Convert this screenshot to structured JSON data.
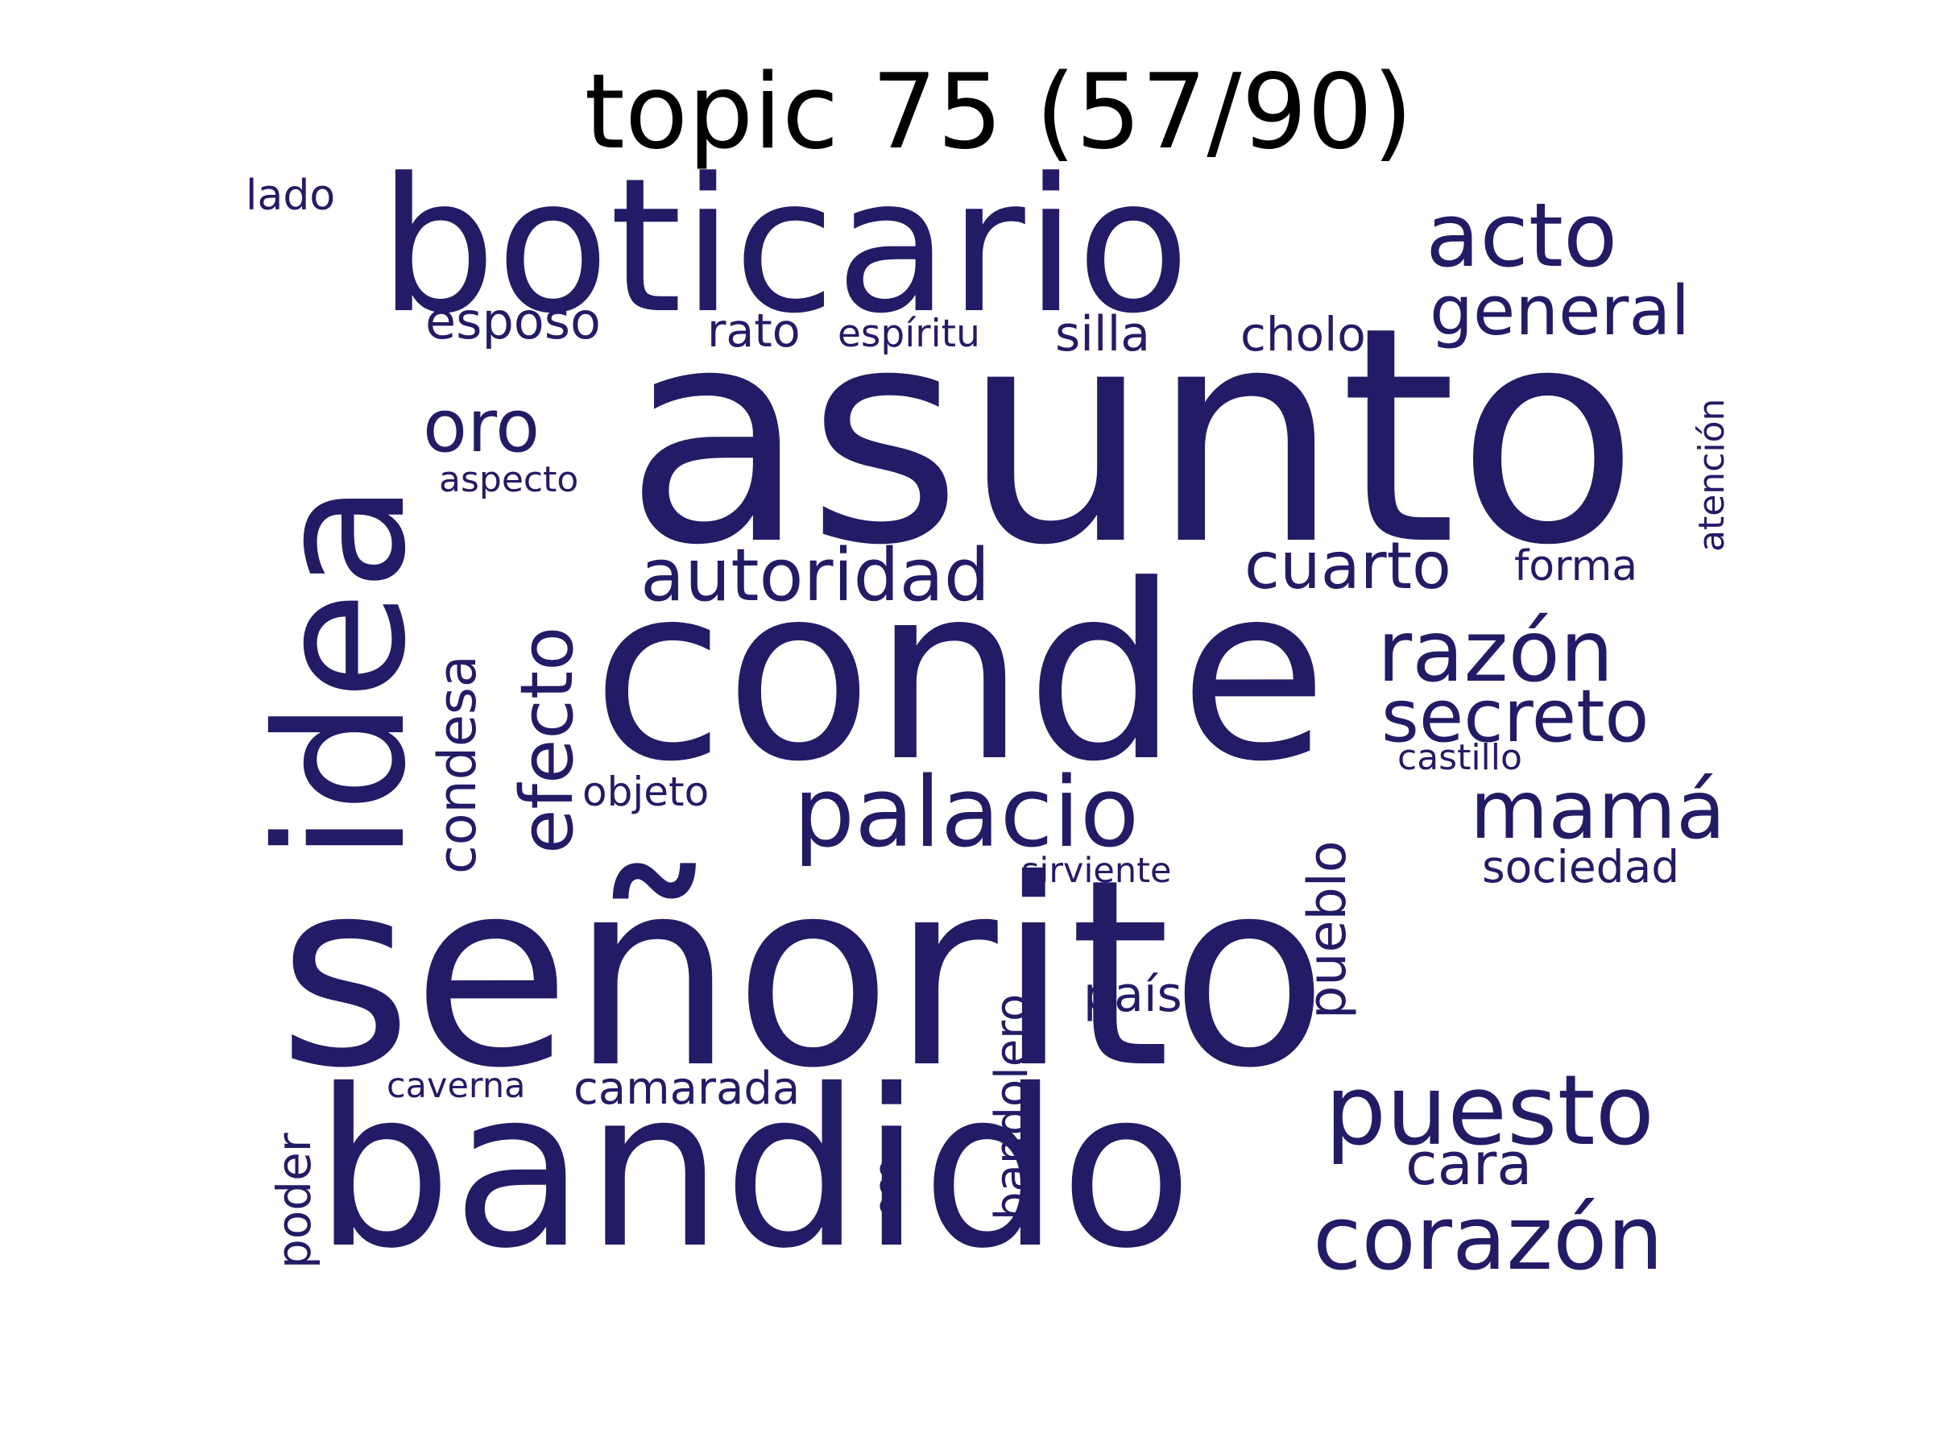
{
  "title": "topic 75 (57/90)",
  "word_color": "#221c66",
  "words": [
    {
      "id": "asunto",
      "text": "asunto",
      "vertical": false
    },
    {
      "id": "senorito",
      "text": "señorito",
      "vertical": false
    },
    {
      "id": "conde",
      "text": "conde",
      "vertical": false
    },
    {
      "id": "bandido",
      "text": "bandido",
      "vertical": false
    },
    {
      "id": "boticario",
      "text": "boticario",
      "vertical": false
    },
    {
      "id": "idea",
      "text": "idea",
      "vertical": true
    },
    {
      "id": "palacio",
      "text": "palacio",
      "vertical": false
    },
    {
      "id": "puesto",
      "text": "puesto",
      "vertical": false
    },
    {
      "id": "corazon",
      "text": "corazón",
      "vertical": false
    },
    {
      "id": "acto",
      "text": "acto",
      "vertical": false
    },
    {
      "id": "razon",
      "text": "razón",
      "vertical": false
    },
    {
      "id": "mama",
      "text": "mamá",
      "vertical": false
    },
    {
      "id": "secreto",
      "text": "secreto",
      "vertical": false
    },
    {
      "id": "autoridad",
      "text": "autoridad",
      "vertical": false
    },
    {
      "id": "efecto",
      "text": "efecto",
      "vertical": true
    },
    {
      "id": "general",
      "text": "general",
      "vertical": false
    },
    {
      "id": "cuarto",
      "text": "cuarto",
      "vertical": false
    },
    {
      "id": "oro",
      "text": "oro",
      "vertical": false
    },
    {
      "id": "condesa",
      "text": "condesa",
      "vertical": true
    },
    {
      "id": "pueblo",
      "text": "pueblo",
      "vertical": true
    },
    {
      "id": "esposo",
      "text": "esposo",
      "vertical": false
    },
    {
      "id": "cara",
      "text": "cara",
      "vertical": false
    },
    {
      "id": "silla",
      "text": "silla",
      "vertical": false
    },
    {
      "id": "bandolero",
      "text": "bandolero",
      "vertical": true
    },
    {
      "id": "cholo",
      "text": "cholo",
      "vertical": false
    },
    {
      "id": "rato",
      "text": "rato",
      "vertical": false
    },
    {
      "id": "pais",
      "text": "país",
      "vertical": false
    },
    {
      "id": "poder",
      "text": "poder",
      "vertical": true
    },
    {
      "id": "sociedad",
      "text": "sociedad",
      "vertical": false
    },
    {
      "id": "camarada",
      "text": "camarada",
      "vertical": false
    },
    {
      "id": "objeto",
      "text": "objeto",
      "vertical": false
    },
    {
      "id": "forma",
      "text": "forma",
      "vertical": false
    },
    {
      "id": "lado",
      "text": "lado",
      "vertical": false
    },
    {
      "id": "espiritu",
      "text": "espíritu",
      "vertical": false
    },
    {
      "id": "atencion",
      "text": "atención",
      "vertical": true
    },
    {
      "id": "aspecto",
      "text": "aspecto",
      "vertical": false
    },
    {
      "id": "castillo",
      "text": "castillo",
      "vertical": false
    },
    {
      "id": "sirviente",
      "text": "sirviente",
      "vertical": false
    },
    {
      "id": "caverna",
      "text": "caverna",
      "vertical": false
    },
    {
      "id": "eco",
      "text": "eco",
      "vertical": true
    }
  ]
}
